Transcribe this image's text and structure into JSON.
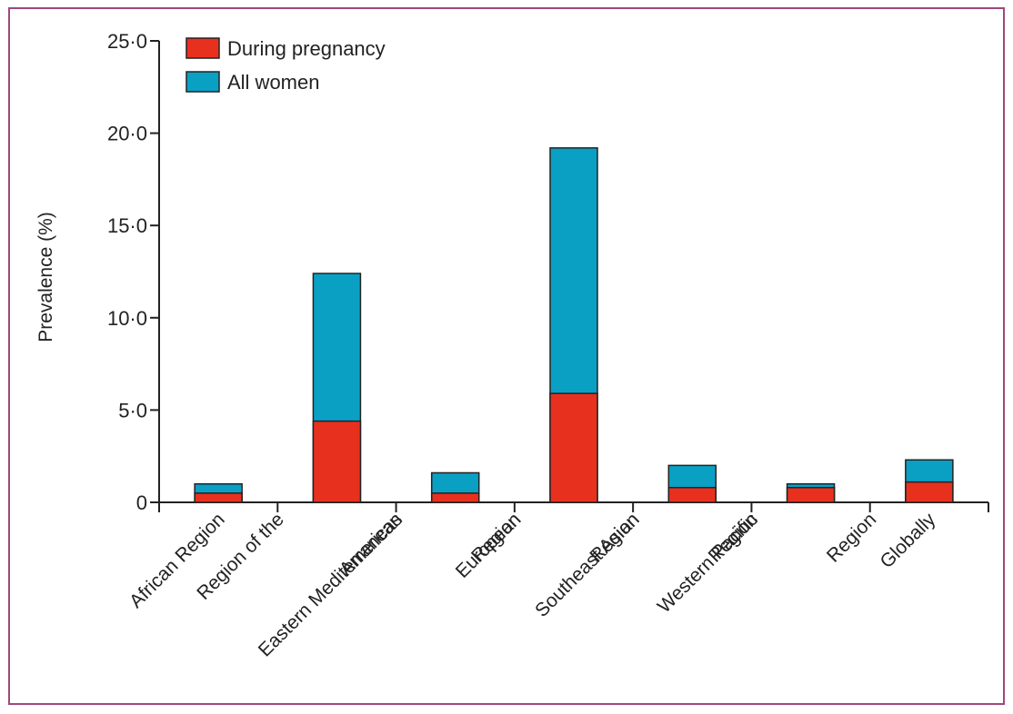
{
  "chart_data": {
    "type": "bar",
    "stacked": true,
    "ylabel": "Prevalence (%)",
    "ylim": [
      0,
      25
    ],
    "yticks": [
      "0",
      "5·0",
      "10·0",
      "15·0",
      "20·0",
      "25·0"
    ],
    "categories": [
      [
        "African Region"
      ],
      [
        "Region of the",
        "Americas"
      ],
      [
        "Eastern Mediterranean",
        "Region"
      ],
      [
        "European",
        "Region"
      ],
      [
        "Southeast Asian",
        "Region"
      ],
      [
        "Western Pacific",
        "Region"
      ],
      [
        "Globally"
      ]
    ],
    "series": [
      {
        "name": "During pregnancy",
        "color": "#e8301f",
        "values": [
          0.5,
          4.4,
          0.5,
          5.9,
          0.8,
          0.8,
          1.1
        ]
      },
      {
        "name": "All women",
        "color": "#0aa0c4",
        "values": [
          1.0,
          12.4,
          1.6,
          19.2,
          2.0,
          1.0,
          2.3
        ]
      }
    ],
    "legend": "top-left"
  }
}
